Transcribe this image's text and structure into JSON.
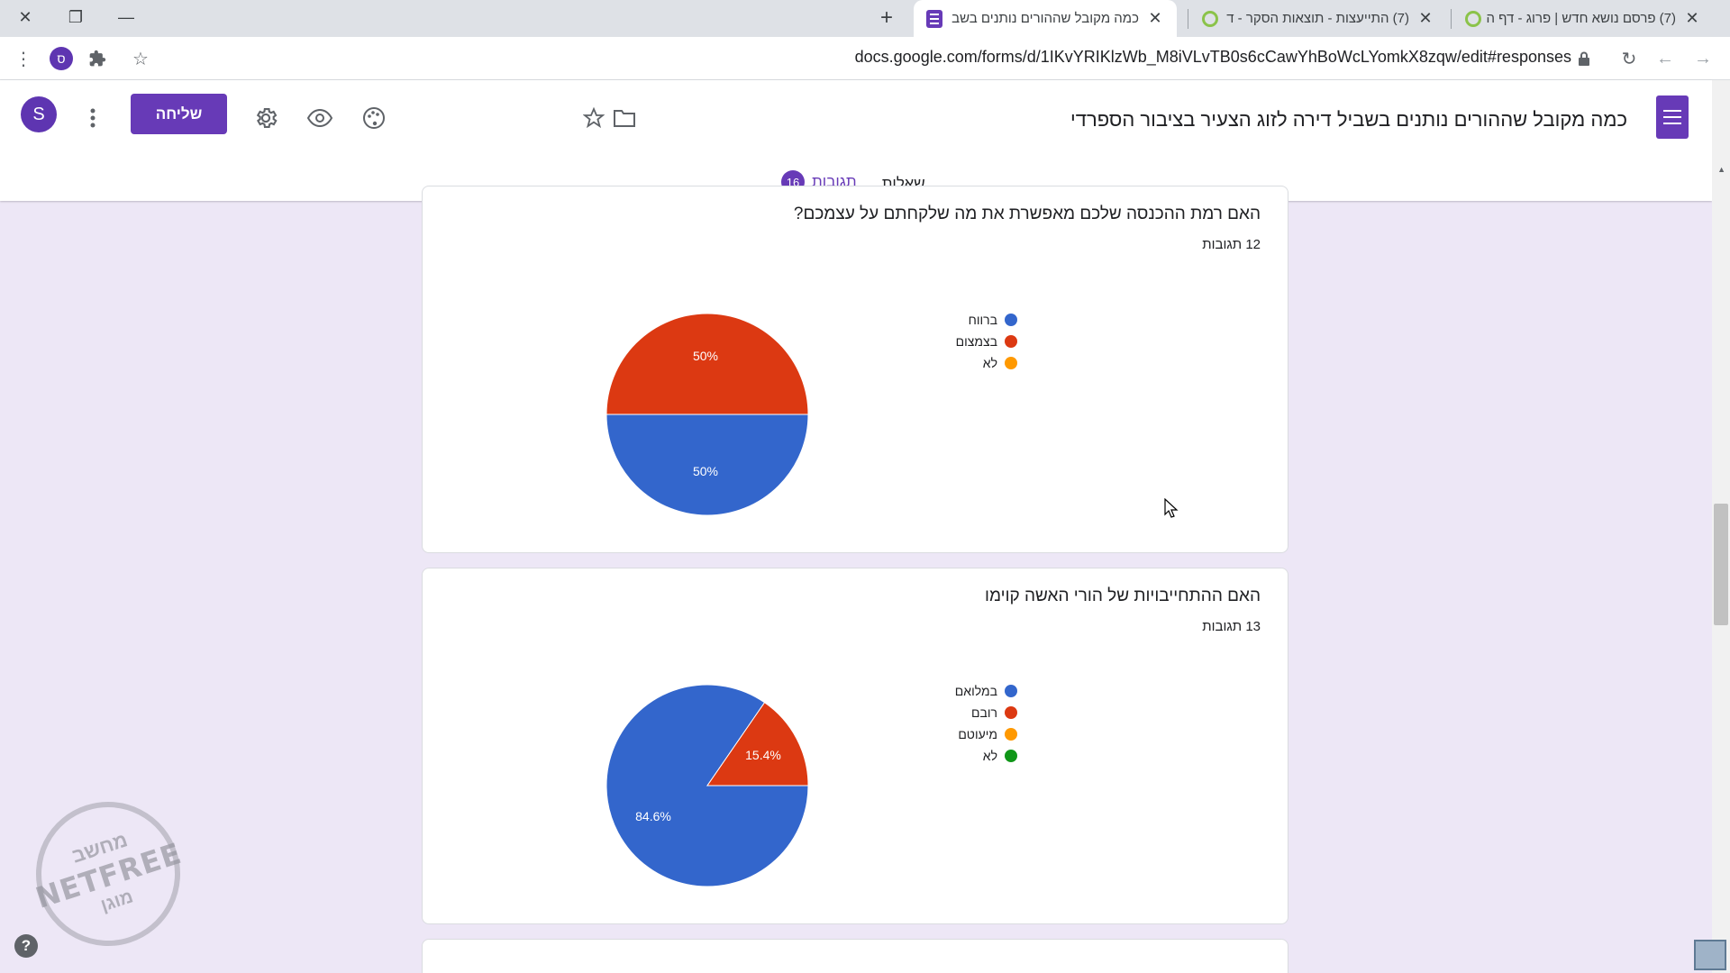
{
  "browser": {
    "tabs": [
      {
        "title": "(7) פרסם נושא חדש | פרוג - דף ה",
        "active": false
      },
      {
        "title": "(7) התייעצות - תוצאות הסקר - ד",
        "active": false
      },
      {
        "title": "כמה מקובל שההורים נותנים בשב",
        "active": true
      }
    ],
    "url": "docs.google.com/forms/d/1IKvYRIKlzWb_M8iVLvTB0s6cCawYhBoWcLYomkX8zqw/edit#responses",
    "profile_initial": "ס"
  },
  "form": {
    "title": "כמה מקובל שההורים נותנים בשביל דירה לזוג הצעיר בציבור הספרדי",
    "send_label": "שליחה",
    "avatar_initial": "S",
    "tabs": {
      "questions": "שאלות",
      "responses": "תגובות",
      "responses_count": "16"
    }
  },
  "questions": [
    {
      "title": "האם רמת ההכנסה שלכם מאפשרת את מה שלקחתם על עצמכם?",
      "count": "12 תגובות",
      "legend": [
        {
          "label": "ברווח",
          "color": "#3366cc"
        },
        {
          "label": "בצמצום",
          "color": "#dc3912"
        },
        {
          "label": "לא",
          "color": "#ff9900"
        }
      ],
      "slice_labels": [
        "50%",
        "50%"
      ]
    },
    {
      "title": "האם ההתחייבויות של הורי האשה קוימו",
      "count": "13 תגובות",
      "legend": [
        {
          "label": "במלואם",
          "color": "#3366cc"
        },
        {
          "label": "רובם",
          "color": "#dc3912"
        },
        {
          "label": "מיעוטם",
          "color": "#ff9900"
        },
        {
          "label": "לא",
          "color": "#109618"
        }
      ],
      "slice_labels": [
        "84.6%",
        "15.4%"
      ]
    }
  ],
  "chart_data": [
    {
      "type": "pie",
      "title": "האם רמת ההכנסה שלכם מאפשרת את מה שלקחתם על עצמכם?",
      "categories": [
        "ברווח",
        "בצמצום",
        "לא"
      ],
      "values": [
        50,
        50,
        0
      ],
      "colors": [
        "#3366cc",
        "#dc3912",
        "#ff9900"
      ],
      "legend": "right"
    },
    {
      "type": "pie",
      "title": "האם ההתחייבויות של הורי האשה קוימו",
      "categories": [
        "במלואם",
        "רובם",
        "מיעוטם",
        "לא"
      ],
      "values": [
        84.6,
        15.4,
        0,
        0
      ],
      "colors": [
        "#3366cc",
        "#dc3912",
        "#ff9900",
        "#109618"
      ],
      "legend": "right"
    }
  ],
  "watermark": {
    "top": "מחשב",
    "middle": "NETFREE",
    "bottom": "מוגן"
  },
  "help_label": "?"
}
